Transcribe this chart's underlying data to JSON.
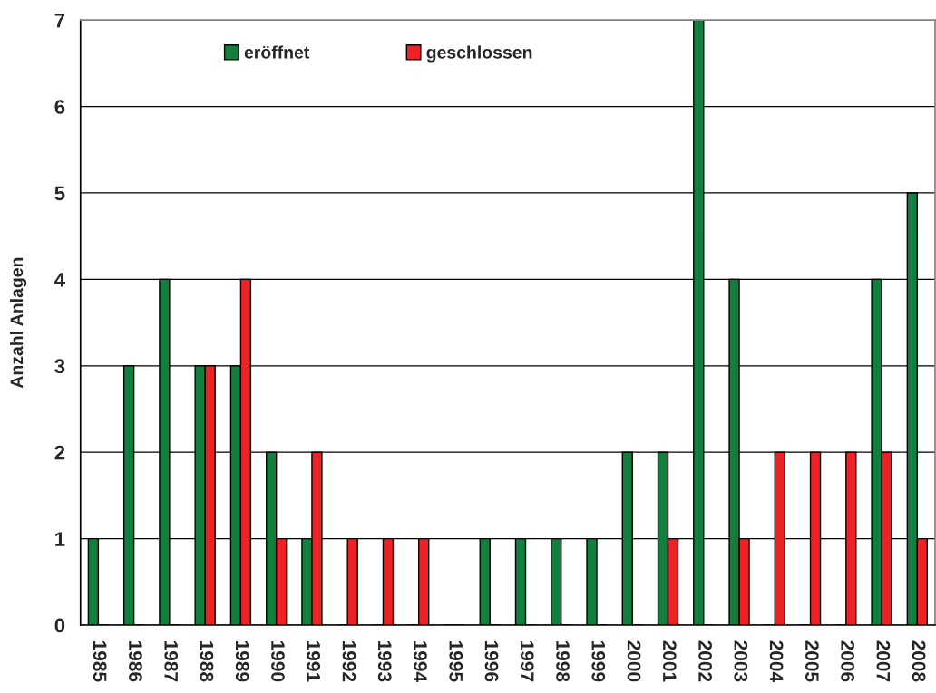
{
  "chart_data": {
    "type": "bar",
    "ylabel": "Anzahl Anlagen",
    "categories": [
      "1985",
      "1986",
      "1987",
      "1988",
      "1989",
      "1990",
      "1991",
      "1992",
      "1993",
      "1994",
      "1995",
      "1996",
      "1997",
      "1998",
      "1999",
      "2000",
      "2001",
      "2002",
      "2003",
      "2004",
      "2005",
      "2006",
      "2007",
      "2008"
    ],
    "series": [
      {
        "name": "eröffnet",
        "color": "#127f3e",
        "values": [
          1,
          3,
          4,
          3,
          3,
          2,
          1,
          0,
          0,
          0,
          0,
          1,
          1,
          1,
          1,
          2,
          2,
          7,
          4,
          0,
          0,
          0,
          4,
          5
        ]
      },
      {
        "name": "geschlossen",
        "color": "#ee2224",
        "values": [
          0,
          0,
          0,
          3,
          4,
          1,
          2,
          1,
          1,
          1,
          0,
          0,
          0,
          0,
          0,
          0,
          1,
          0,
          1,
          2,
          2,
          2,
          2,
          1
        ]
      }
    ],
    "ylim": [
      0,
      7
    ],
    "yticks": [
      0,
      1,
      2,
      3,
      4,
      5,
      6,
      7
    ],
    "grid": "y",
    "legend": "top left"
  }
}
